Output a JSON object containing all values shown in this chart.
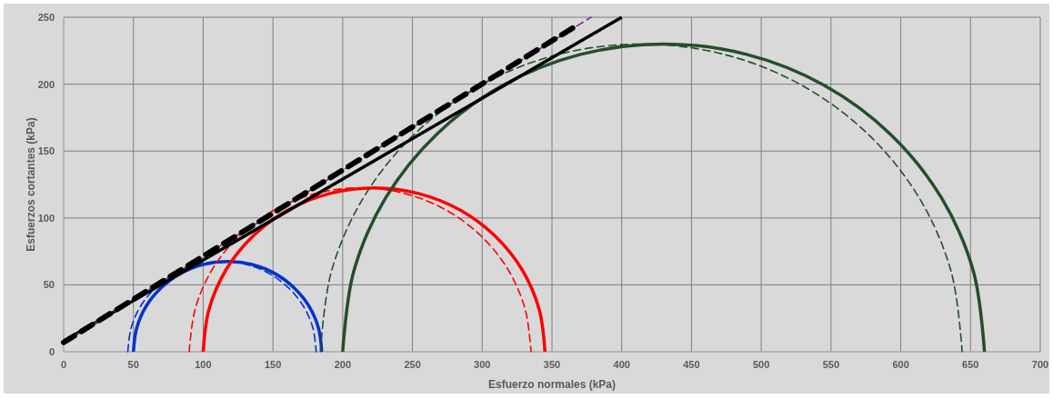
{
  "chart_data": {
    "type": "line",
    "xlabel": "Esfuerzo normales (kPa)",
    "ylabel": "Esfuerzos cortantes (kPa)",
    "xlim": [
      0,
      700
    ],
    "ylim": [
      0,
      250
    ],
    "xticks": [
      0,
      50,
      100,
      150,
      200,
      250,
      300,
      350,
      400,
      450,
      500,
      550,
      600,
      650,
      700
    ],
    "yticks": [
      0,
      50,
      100,
      150,
      200,
      250
    ],
    "grid": true,
    "marker": "none",
    "series": [
      {
        "color": "#0033cc",
        "line_style": "solid",
        "x": [
          50,
          52.3,
          59.0,
          69.8,
          83.75,
          100.0,
          117.5,
          135.0,
          151.3,
          165.2,
          176.0,
          182.7,
          185
        ],
        "values": [
          0,
          17.5,
          33.8,
          47.7,
          58.5,
          65.2,
          67.5,
          65.2,
          58.5,
          47.7,
          33.8,
          17.5,
          0
        ]
      },
      {
        "color": "#0033cc",
        "line_style": "dashed",
        "x": [
          46,
          48.3,
          55.0,
          65.8,
          79.75,
          96.0,
          113.5,
          131.0,
          147.3,
          161.2,
          172.0,
          178.7,
          181
        ],
        "values": [
          0,
          17.5,
          33.8,
          47.7,
          58.5,
          65.2,
          67.5,
          65.2,
          58.5,
          47.7,
          33.8,
          17.5,
          0
        ]
      },
      {
        "color": "#ff0000",
        "line_style": "solid",
        "x": [
          100,
          104.2,
          116.4,
          135.9,
          161.25,
          190.8,
          222.5,
          254.2,
          283.75,
          309.1,
          328.6,
          340.8,
          345
        ],
        "values": [
          0,
          31.7,
          61.3,
          86.6,
          106.1,
          118.3,
          122.5,
          118.3,
          106.1,
          86.6,
          61.3,
          31.7,
          0
        ]
      },
      {
        "color": "#ff0000",
        "line_style": "dashed",
        "x": [
          90,
          94.2,
          106.4,
          125.9,
          151.25,
          180.8,
          212.5,
          244.2,
          273.75,
          299.1,
          318.6,
          330.8,
          335
        ],
        "values": [
          0,
          31.7,
          61.3,
          86.6,
          106.1,
          118.3,
          122.5,
          118.3,
          106.1,
          86.6,
          61.3,
          31.7,
          0
        ]
      },
      {
        "color": "#264d2b",
        "line_style": "solid",
        "x": [
          200,
          207.8,
          230.8,
          267.4,
          315,
          370.4,
          430,
          489.6,
          545,
          592.6,
          629.2,
          652.2,
          660
        ],
        "values": [
          0,
          59.6,
          115,
          162.6,
          199.2,
          222.2,
          230,
          222.2,
          199.2,
          162.6,
          115,
          59.6,
          0
        ]
      },
      {
        "color": "#264d2b",
        "line_style": "dashed",
        "x": [
          184,
          191.8,
          214.8,
          251.4,
          299,
          354.4,
          414,
          473.6,
          529,
          576.6,
          613.2,
          636.2,
          644
        ],
        "values": [
          0,
          59.6,
          115,
          162.6,
          199.2,
          222.2,
          230,
          222.2,
          199.2,
          162.6,
          115,
          59.6,
          0
        ]
      },
      {
        "color": "#000000",
        "line_style": "solid",
        "x": [
          0,
          400
        ],
        "values": [
          8,
          250
        ]
      },
      {
        "color": "#7030a0",
        "line_style": "dashed",
        "x": [
          0,
          378
        ],
        "values": [
          7,
          250
        ]
      },
      {
        "color": "#000000",
        "line_style": "dashed",
        "x": [
          0,
          368
        ],
        "values": [
          7,
          244
        ]
      }
    ]
  }
}
